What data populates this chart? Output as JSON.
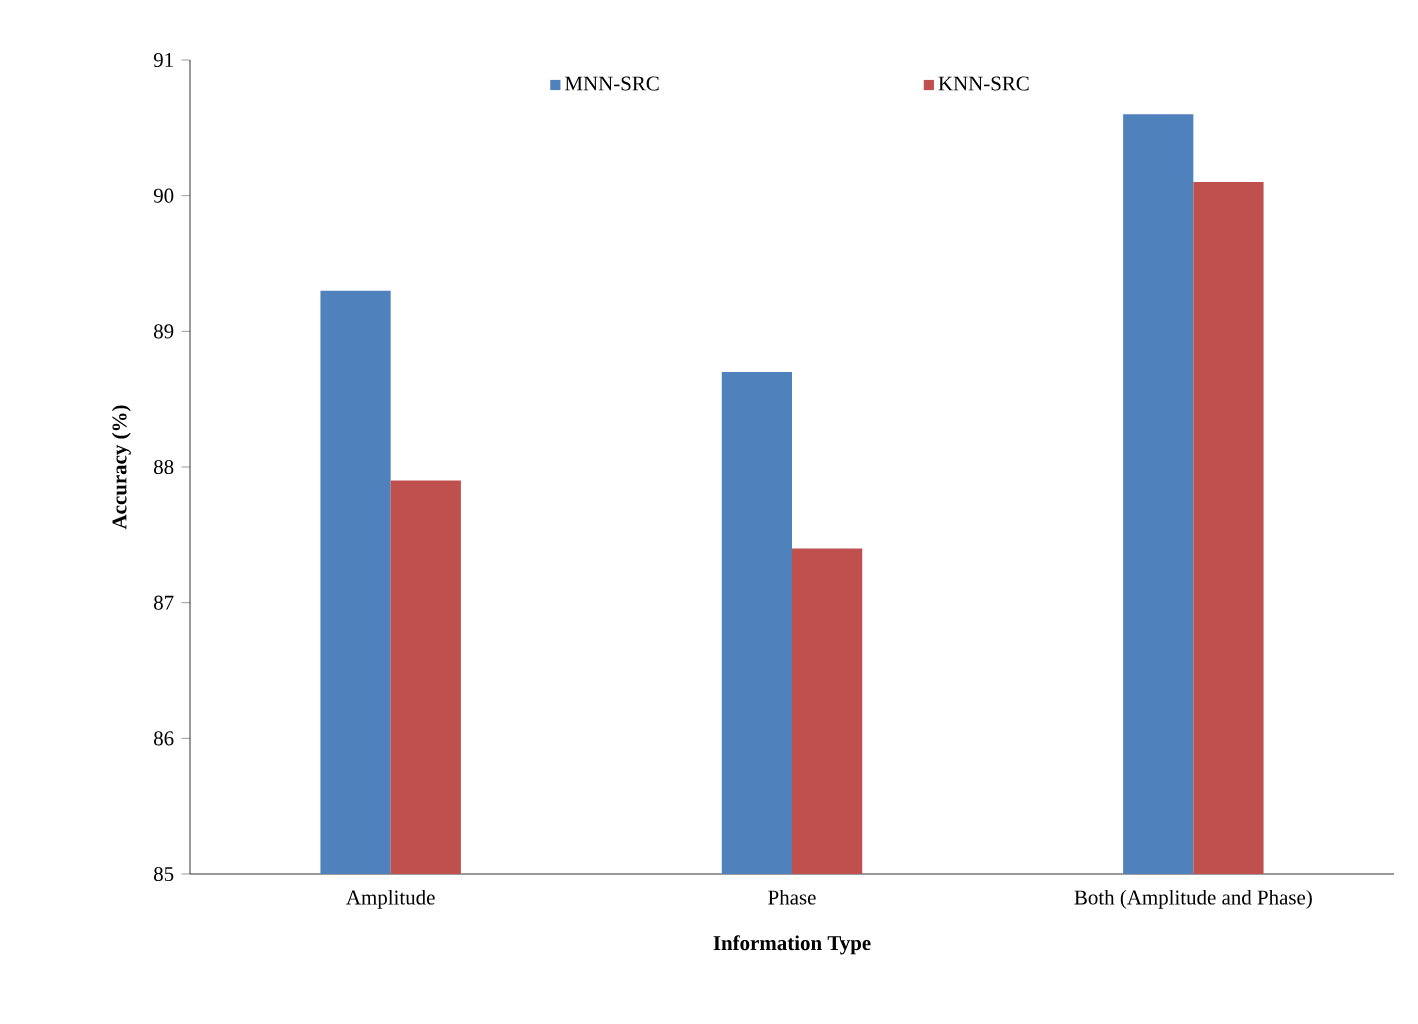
{
  "chart_data": {
    "type": "bar",
    "xlabel": "Information Type",
    "ylabel": "Accuracy  (%)",
    "categories": [
      "Amplitude",
      "Phase",
      "Both (Amplitude and Phase)"
    ],
    "series": [
      {
        "name": "MNN-SRC",
        "color": "#4f81bd",
        "values": [
          89.3,
          88.7,
          90.6
        ]
      },
      {
        "name": "KNN-SRC",
        "color": "#c0504d",
        "values": [
          87.9,
          87.4,
          90.1
        ]
      }
    ],
    "ylim": [
      85,
      91
    ],
    "yticks": [
      85,
      86,
      87,
      88,
      89,
      90,
      91
    ],
    "legend": "top",
    "grid": false
  }
}
